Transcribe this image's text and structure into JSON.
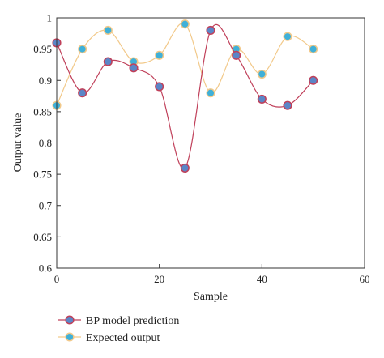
{
  "chart_data": {
    "type": "line",
    "title": "",
    "xlabel": "Sample",
    "ylabel": "Output value",
    "xlim": [
      0,
      60
    ],
    "ylim": [
      0.6,
      1.0
    ],
    "xticks": [
      0,
      20,
      40,
      60
    ],
    "yticks": [
      0.6,
      0.65,
      0.7,
      0.75,
      0.8,
      0.85,
      0.9,
      0.95,
      1.0
    ],
    "ytick_labels": [
      "0.6",
      "0.65",
      "0.7",
      "0.75",
      "0.8",
      "0.85",
      "0.9",
      "0.95",
      "1"
    ],
    "grid": false,
    "legend_position": "bottom-left, below plot",
    "x": [
      0,
      5,
      10,
      15,
      20,
      25,
      30,
      35,
      40,
      45,
      50
    ],
    "series": [
      {
        "name": "BP model prediction",
        "line_color": "#c0405a",
        "marker_fill": "#5b86c7",
        "marker_edge": "#c0405a",
        "values": [
          0.96,
          0.88,
          0.93,
          0.92,
          0.89,
          0.76,
          0.98,
          0.94,
          0.87,
          0.86,
          0.9
        ]
      },
      {
        "name": "Expected output",
        "line_color": "#f2c98a",
        "marker_fill": "#3fb0d8",
        "marker_edge": "#f2c98a",
        "values": [
          0.86,
          0.95,
          0.98,
          0.93,
          0.94,
          0.99,
          0.88,
          0.95,
          0.91,
          0.97,
          0.95
        ]
      }
    ]
  }
}
